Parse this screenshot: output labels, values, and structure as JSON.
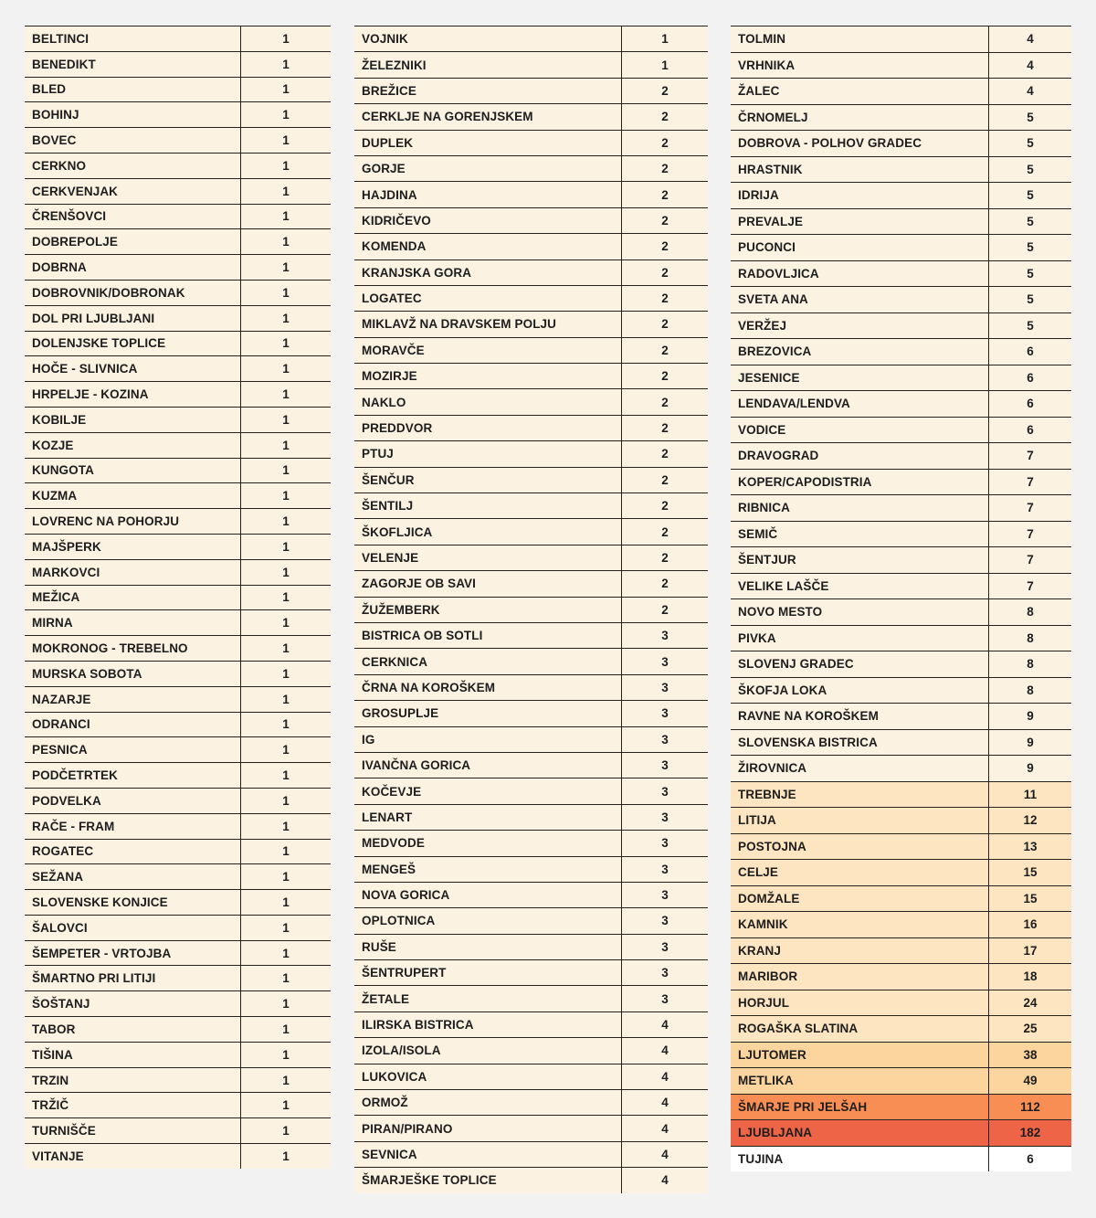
{
  "palette": {
    "page_bg": "#f2f2f2",
    "border": "#26211c",
    "text": "#1d1d1d",
    "l0": "#fcf2e1",
    "l1": "#fce5c0",
    "l2": "#fbd49e",
    "l3": "#f98e55",
    "l4": "#ed6446",
    "white": "#ffffff"
  },
  "row_columns": [
    "municipality",
    "count",
    "band"
  ],
  "tables": [
    {
      "id": "municipality-table-1",
      "rows": [
        [
          "BELTINCI",
          "1",
          "l0"
        ],
        [
          "BENEDIKT",
          "1",
          "l0"
        ],
        [
          "BLED",
          "1",
          "l0"
        ],
        [
          "BOHINJ",
          "1",
          "l0"
        ],
        [
          "BOVEC",
          "1",
          "l0"
        ],
        [
          "CERKNO",
          "1",
          "l0"
        ],
        [
          "CERKVENJAK",
          "1",
          "l0"
        ],
        [
          "ČRENŠOVCI",
          "1",
          "l0"
        ],
        [
          "DOBREPOLJE",
          "1",
          "l0"
        ],
        [
          "DOBRNA",
          "1",
          "l0"
        ],
        [
          "DOBROVNIK/DOBRONAK",
          "1",
          "l0"
        ],
        [
          "DOL PRI LJUBLJANI",
          "1",
          "l0"
        ],
        [
          "DOLENJSKE TOPLICE",
          "1",
          "l0"
        ],
        [
          "HOČE - SLIVNICA",
          "1",
          "l0"
        ],
        [
          "HRPELJE - KOZINA",
          "1",
          "l0"
        ],
        [
          "KOBILJE",
          "1",
          "l0"
        ],
        [
          "KOZJE",
          "1",
          "l0"
        ],
        [
          "KUNGOTA",
          "1",
          "l0"
        ],
        [
          "KUZMA",
          "1",
          "l0"
        ],
        [
          "LOVRENC NA POHORJU",
          "1",
          "l0"
        ],
        [
          "MAJŠPERK",
          "1",
          "l0"
        ],
        [
          "MARKOVCI",
          "1",
          "l0"
        ],
        [
          "MEŽICA",
          "1",
          "l0"
        ],
        [
          "MIRNA",
          "1",
          "l0"
        ],
        [
          "MOKRONOG - TREBELNO",
          "1",
          "l0"
        ],
        [
          "MURSKA SOBOTA",
          "1",
          "l0"
        ],
        [
          "NAZARJE",
          "1",
          "l0"
        ],
        [
          "ODRANCI",
          "1",
          "l0"
        ],
        [
          "PESNICA",
          "1",
          "l0"
        ],
        [
          "PODČETRTEK",
          "1",
          "l0"
        ],
        [
          "PODVELKA",
          "1",
          "l0"
        ],
        [
          "RAČE - FRAM",
          "1",
          "l0"
        ],
        [
          "ROGATEC",
          "1",
          "l0"
        ],
        [
          "SEŽANA",
          "1",
          "l0"
        ],
        [
          "SLOVENSKE KONJICE",
          "1",
          "l0"
        ],
        [
          "ŠALOVCI",
          "1",
          "l0"
        ],
        [
          "ŠEMPETER - VRTOJBA",
          "1",
          "l0"
        ],
        [
          "ŠMARTNO PRI LITIJI",
          "1",
          "l0"
        ],
        [
          "ŠOŠTANJ",
          "1",
          "l0"
        ],
        [
          "TABOR",
          "1",
          "l0"
        ],
        [
          "TIŠINA",
          "1",
          "l0"
        ],
        [
          "TRZIN",
          "1",
          "l0"
        ],
        [
          "TRŽIČ",
          "1",
          "l0"
        ],
        [
          "TURNIŠČE",
          "1",
          "l0"
        ],
        [
          "VITANJE",
          "1",
          "l0"
        ]
      ]
    },
    {
      "id": "municipality-table-2",
      "rows": [
        [
          "VOJNIK",
          "1",
          "l0"
        ],
        [
          "ŽELEZNIKI",
          "1",
          "l0"
        ],
        [
          "BREŽICE",
          "2",
          "l0"
        ],
        [
          "CERKLJE NA GORENJSKEM",
          "2",
          "l0"
        ],
        [
          "DUPLEK",
          "2",
          "l0"
        ],
        [
          "GORJE",
          "2",
          "l0"
        ],
        [
          "HAJDINA",
          "2",
          "l0"
        ],
        [
          "KIDRIČEVO",
          "2",
          "l0"
        ],
        [
          "KOMENDA",
          "2",
          "l0"
        ],
        [
          "KRANJSKA GORA",
          "2",
          "l0"
        ],
        [
          "LOGATEC",
          "2",
          "l0"
        ],
        [
          "MIKLAVŽ NA DRAVSKEM POLJU",
          "2",
          "l0"
        ],
        [
          "MORAVČE",
          "2",
          "l0"
        ],
        [
          "MOZIRJE",
          "2",
          "l0"
        ],
        [
          "NAKLO",
          "2",
          "l0"
        ],
        [
          "PREDDVOR",
          "2",
          "l0"
        ],
        [
          "PTUJ",
          "2",
          "l0"
        ],
        [
          "ŠENČUR",
          "2",
          "l0"
        ],
        [
          "ŠENTILJ",
          "2",
          "l0"
        ],
        [
          "ŠKOFLJICA",
          "2",
          "l0"
        ],
        [
          "VELENJE",
          "2",
          "l0"
        ],
        [
          "ZAGORJE OB SAVI",
          "2",
          "l0"
        ],
        [
          "ŽUŽEMBERK",
          "2",
          "l0"
        ],
        [
          "BISTRICA OB SOTLI",
          "3",
          "l0"
        ],
        [
          "CERKNICA",
          "3",
          "l0"
        ],
        [
          "ČRNA NA KOROŠKEM",
          "3",
          "l0"
        ],
        [
          "GROSUPLJE",
          "3",
          "l0"
        ],
        [
          "IG",
          "3",
          "l0"
        ],
        [
          "IVANČNA GORICA",
          "3",
          "l0"
        ],
        [
          "KOČEVJE",
          "3",
          "l0"
        ],
        [
          "LENART",
          "3",
          "l0"
        ],
        [
          "MEDVODE",
          "3",
          "l0"
        ],
        [
          "MENGEŠ",
          "3",
          "l0"
        ],
        [
          "NOVA GORICA",
          "3",
          "l0"
        ],
        [
          "OPLOTNICA",
          "3",
          "l0"
        ],
        [
          "RUŠE",
          "3",
          "l0"
        ],
        [
          "ŠENTRUPERT",
          "3",
          "l0"
        ],
        [
          "ŽETALE",
          "3",
          "l0"
        ],
        [
          "ILIRSKA BISTRICA",
          "4",
          "l0"
        ],
        [
          "IZOLA/ISOLA",
          "4",
          "l0"
        ],
        [
          "LUKOVICA",
          "4",
          "l0"
        ],
        [
          "ORMOŽ",
          "4",
          "l0"
        ],
        [
          "PIRAN/PIRANO",
          "4",
          "l0"
        ],
        [
          "SEVNICA",
          "4",
          "l0"
        ],
        [
          "ŠMARJEŠKE TOPLICE",
          "4",
          "l0"
        ]
      ]
    },
    {
      "id": "municipality-table-3",
      "rows": [
        [
          "TOLMIN",
          "4",
          "l0"
        ],
        [
          "VRHNIKA",
          "4",
          "l0"
        ],
        [
          "ŽALEC",
          "4",
          "l0"
        ],
        [
          "ČRNOMELJ",
          "5",
          "l0"
        ],
        [
          "DOBROVA - POLHOV GRADEC",
          "5",
          "l0"
        ],
        [
          "HRASTNIK",
          "5",
          "l0"
        ],
        [
          "IDRIJA",
          "5",
          "l0"
        ],
        [
          "PREVALJE",
          "5",
          "l0"
        ],
        [
          "PUCONCI",
          "5",
          "l0"
        ],
        [
          "RADOVLJICA",
          "5",
          "l0"
        ],
        [
          "SVETA ANA",
          "5",
          "l0"
        ],
        [
          "VERŽEJ",
          "5",
          "l0"
        ],
        [
          "BREZOVICA",
          "6",
          "l0"
        ],
        [
          "JESENICE",
          "6",
          "l0"
        ],
        [
          "LENDAVA/LENDVA",
          "6",
          "l0"
        ],
        [
          "VODICE",
          "6",
          "l0"
        ],
        [
          "DRAVOGRAD",
          "7",
          "l0"
        ],
        [
          "KOPER/CAPODISTRIA",
          "7",
          "l0"
        ],
        [
          "RIBNICA",
          "7",
          "l0"
        ],
        [
          "SEMIČ",
          "7",
          "l0"
        ],
        [
          "ŠENTJUR",
          "7",
          "l0"
        ],
        [
          "VELIKE LAŠČE",
          "7",
          "l0"
        ],
        [
          "NOVO MESTO",
          "8",
          "l0"
        ],
        [
          "PIVKA",
          "8",
          "l0"
        ],
        [
          "SLOVENJ GRADEC",
          "8",
          "l0"
        ],
        [
          "ŠKOFJA LOKA",
          "8",
          "l0"
        ],
        [
          "RAVNE NA KOROŠKEM",
          "9",
          "l0"
        ],
        [
          "SLOVENSKA BISTRICA",
          "9",
          "l0"
        ],
        [
          "ŽIROVNICA",
          "9",
          "l0"
        ],
        [
          "TREBNJE",
          "11",
          "l1"
        ],
        [
          "LITIJA",
          "12",
          "l1"
        ],
        [
          "POSTOJNA",
          "13",
          "l1"
        ],
        [
          "CELJE",
          "15",
          "l1"
        ],
        [
          "DOMŽALE",
          "15",
          "l1"
        ],
        [
          "KAMNIK",
          "16",
          "l1"
        ],
        [
          "KRANJ",
          "17",
          "l1"
        ],
        [
          "MARIBOR",
          "18",
          "l1"
        ],
        [
          "HORJUL",
          "24",
          "l1"
        ],
        [
          "ROGAŠKA SLATINA",
          "25",
          "l1"
        ],
        [
          "LJUTOMER",
          "38",
          "l2"
        ],
        [
          "METLIKA",
          "49",
          "l2"
        ],
        [
          "ŠMARJE PRI JELŠAH",
          "112",
          "l3"
        ],
        [
          "LJUBLJANA",
          "182",
          "l4"
        ],
        [
          "TUJINA",
          "6",
          "white"
        ]
      ]
    }
  ]
}
